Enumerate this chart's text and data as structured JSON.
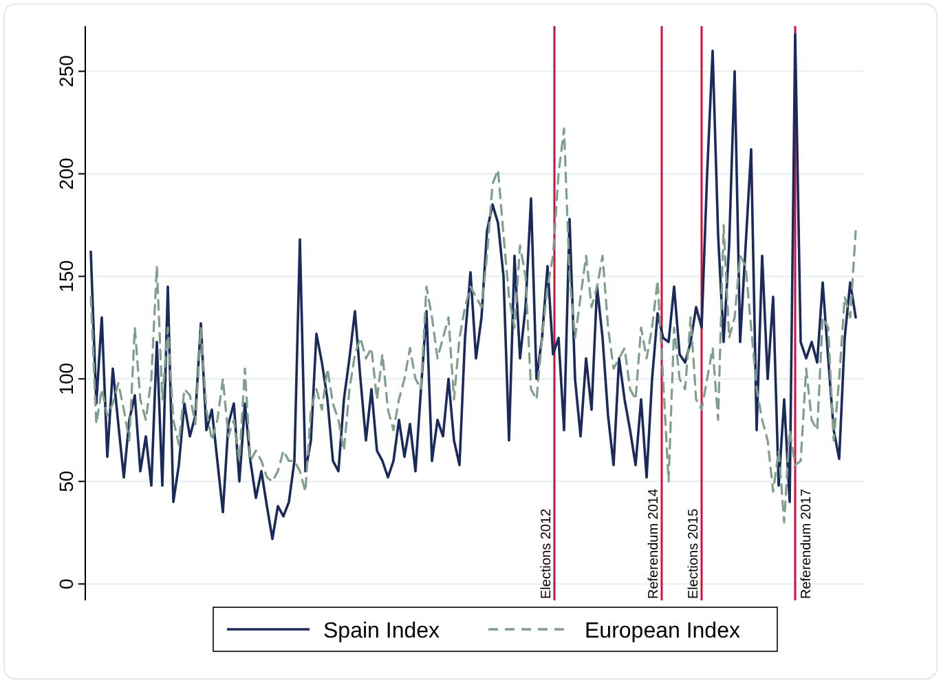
{
  "chart_data": {
    "type": "line",
    "categories": [
      null,
      null,
      null,
      null,
      null,
      null,
      null,
      null,
      null,
      null,
      null,
      null,
      null,
      null,
      null,
      null,
      null,
      null,
      null,
      null,
      null,
      null,
      null,
      null,
      null,
      null,
      null,
      null,
      null,
      null,
      null,
      null,
      null,
      null,
      null,
      null,
      null,
      null,
      null,
      null,
      null,
      null,
      null,
      null,
      null,
      null,
      null,
      null,
      null,
      null,
      null,
      null,
      null,
      null,
      null,
      null,
      null,
      null,
      null,
      null,
      null,
      null,
      null,
      null,
      null,
      null,
      null,
      null,
      null,
      null,
      null,
      null,
      null,
      null,
      null,
      null,
      null,
      null,
      null,
      null,
      null,
      null,
      null,
      null,
      null,
      null,
      null,
      null,
      null,
      null,
      null,
      null,
      null,
      null,
      null,
      null,
      null,
      null,
      null,
      null,
      null,
      null,
      null,
      null,
      null,
      null,
      null,
      null,
      null,
      null,
      null,
      null,
      null,
      null,
      null,
      null,
      null,
      null,
      null,
      null,
      null,
      null,
      null,
      null,
      null,
      null,
      null,
      null,
      null,
      null,
      null,
      null,
      null,
      null,
      null,
      null,
      null,
      null,
      null,
      null
    ],
    "series": [
      {
        "name": "Spain Index",
        "color": "#1b2a5c",
        "line_style": "solid",
        "values": [
          162,
          88,
          130,
          62,
          105,
          78,
          52,
          80,
          92,
          55,
          72,
          48,
          118,
          48,
          145,
          40,
          58,
          88,
          72,
          82,
          127,
          75,
          85,
          60,
          35,
          78,
          88,
          50,
          88,
          60,
          42,
          55,
          38,
          22,
          38,
          33,
          40,
          60,
          168,
          55,
          70,
          122,
          108,
          90,
          60,
          55,
          90,
          110,
          133,
          100,
          70,
          95,
          65,
          60,
          52,
          60,
          80,
          62,
          78,
          55,
          95,
          133,
          60,
          80,
          72,
          100,
          70,
          58,
          120,
          152,
          110,
          130,
          172,
          185,
          176,
          150,
          70,
          160,
          110,
          135,
          188,
          100,
          120,
          155,
          112,
          120,
          75,
          178,
          100,
          72,
          110,
          85,
          145,
          120,
          82,
          58,
          110,
          90,
          75,
          58,
          90,
          52,
          100,
          132,
          120,
          118,
          145,
          112,
          108,
          118,
          135,
          125,
          200,
          260,
          170,
          118,
          165,
          250,
          118,
          165,
          212,
          75,
          160,
          100,
          140,
          48,
          90,
          40,
          268,
          118,
          110,
          118,
          108,
          147,
          110,
          75,
          61,
          120,
          147,
          130
        ]
      },
      {
        "name": "European Index",
        "color": "#7f9e8c",
        "line_style": "dashed",
        "values": [
          140,
          78,
          95,
          82,
          88,
          98,
          85,
          70,
          125,
          90,
          80,
          100,
          155,
          90,
          125,
          80,
          68,
          95,
          92,
          78,
          125,
          85,
          70,
          80,
          100,
          72,
          80,
          60,
          105,
          60,
          65,
          60,
          52,
          50,
          55,
          65,
          60,
          60,
          55,
          45,
          85,
          95,
          85,
          105,
          88,
          80,
          65,
          95,
          112,
          120,
          110,
          115,
          90,
          112,
          85,
          75,
          90,
          100,
          115,
          100,
          95,
          145,
          130,
          110,
          120,
          130,
          90,
          120,
          135,
          145,
          140,
          135,
          160,
          195,
          202,
          170,
          140,
          125,
          165,
          150,
          95,
          90,
          120,
          145,
          160,
          200,
          222,
          150,
          120,
          140,
          160,
          135,
          145,
          160,
          125,
          105,
          110,
          115,
          95,
          90,
          125,
          110,
          125,
          148,
          100,
          50,
          125,
          100,
          95,
          130,
          90,
          85,
          100,
          115,
          80,
          175,
          120,
          130,
          160,
          155,
          125,
          95,
          80,
          70,
          45,
          65,
          30,
          75,
          58,
          60,
          105,
          80,
          75,
          130,
          125,
          70,
          100,
          140,
          130,
          172
        ]
      }
    ],
    "ylim": [
      -8,
      272
    ],
    "yticks": [
      0,
      50,
      100,
      150,
      200,
      250
    ],
    "grid": "y",
    "legend": "bottom",
    "tick_labels": "y",
    "annotations": [
      "Elections 2012",
      "Referendum 2014",
      "Elections 2015",
      "Referendum 2017"
    ]
  }
}
